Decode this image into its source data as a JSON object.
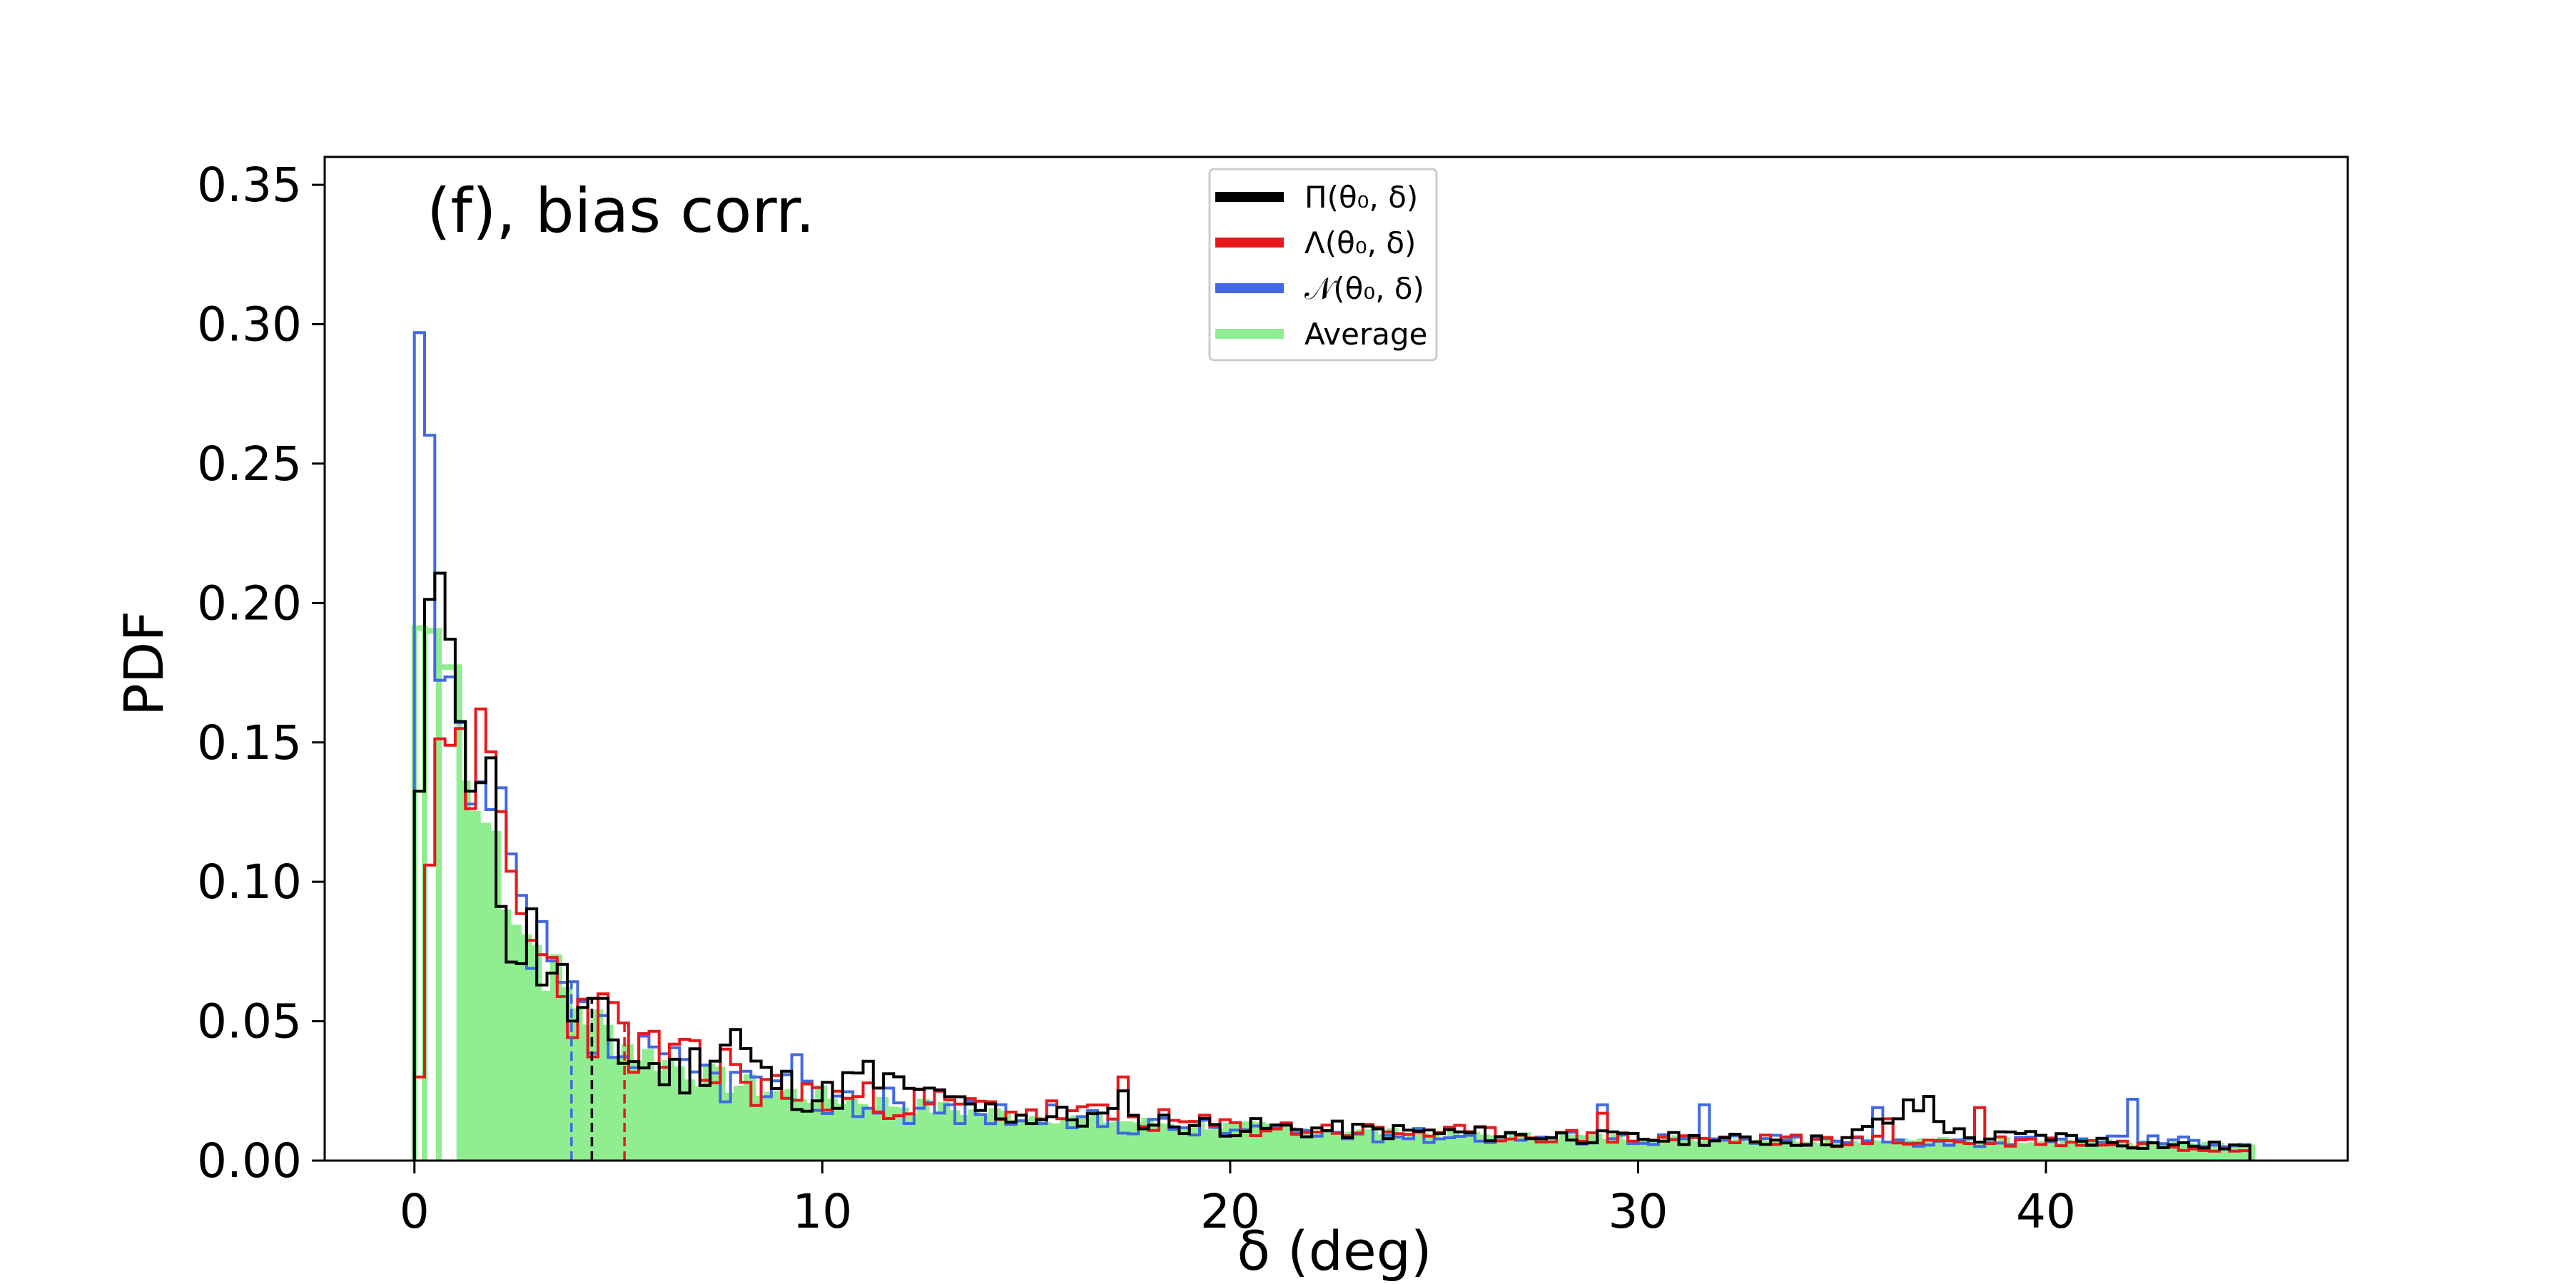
{
  "chart_data": {
    "type": "histogram",
    "annotation": "(f), bias corr.",
    "xlabel": "δ (deg)",
    "ylabel": "PDF",
    "xlim": [
      -2.2,
      47.4
    ],
    "ylim": [
      0.0,
      0.36
    ],
    "xticks": [
      0,
      10,
      20,
      30,
      40
    ],
    "yticks": [
      0.0,
      0.05,
      0.1,
      0.15,
      0.2,
      0.25,
      0.3,
      0.35
    ],
    "ytick_labels": [
      "0.00",
      "0.05",
      "0.10",
      "0.15",
      "0.20",
      "0.25",
      "0.30",
      "0.35"
    ],
    "grid": false,
    "legend_position": "top-center",
    "legend": [
      {
        "label": "Π(θ₀, δ)",
        "color": "#000000"
      },
      {
        "label": "Λ(θ₀, δ)",
        "color": "#e8191c"
      },
      {
        "label": "𝒩(θ₀, δ)",
        "color": "#4169e1"
      },
      {
        "label": "Average",
        "color": "#90ee90"
      }
    ],
    "x_range": [
      0,
      45
    ],
    "bin_width": 0.25,
    "series": [
      {
        "name": "Π(θ₀, δ)",
        "color": "#000000",
        "style": "step",
        "key_points": [
          [
            0,
            0.0
          ],
          [
            0.1,
            0.125
          ],
          [
            0.35,
            0.2
          ],
          [
            0.6,
            0.213
          ],
          [
            0.85,
            0.19
          ],
          [
            1.1,
            0.16
          ],
          [
            1.4,
            0.13
          ],
          [
            1.8,
            0.12
          ],
          [
            2.2,
            0.1
          ],
          [
            2.6,
            0.085
          ],
          [
            3.0,
            0.075
          ],
          [
            3.3,
            0.08
          ],
          [
            3.6,
            0.06
          ],
          [
            4.2,
            0.05
          ],
          [
            4.7,
            0.045
          ],
          [
            5.5,
            0.035
          ],
          [
            6.5,
            0.03
          ],
          [
            7.8,
            0.045
          ],
          [
            8.5,
            0.03
          ],
          [
            10,
            0.022
          ],
          [
            11,
            0.03
          ],
          [
            12,
            0.025
          ],
          [
            13,
            0.02
          ],
          [
            15,
            0.016
          ],
          [
            17,
            0.015
          ],
          [
            20,
            0.012
          ],
          [
            25,
            0.01
          ],
          [
            30,
            0.008
          ],
          [
            35,
            0.007
          ],
          [
            37,
            0.02
          ],
          [
            38,
            0.008
          ],
          [
            40,
            0.009
          ],
          [
            42,
            0.006
          ],
          [
            45,
            0.005
          ]
        ],
        "spikes": [
          [
            3.5,
            0.096
          ],
          [
            4.5,
            0.067
          ],
          [
            7.9,
            0.047
          ],
          [
            11.0,
            0.038
          ],
          [
            12.6,
            0.026
          ],
          [
            17.3,
            0.025
          ],
          [
            37.1,
            0.023
          ]
        ],
        "median_marker": 4.35
      },
      {
        "name": "Λ(θ₀, δ)",
        "color": "#e8191c",
        "style": "step",
        "key_points": [
          [
            0,
            0.0
          ],
          [
            0.25,
            0.06
          ],
          [
            0.5,
            0.152
          ],
          [
            0.85,
            0.15
          ],
          [
            1.1,
            0.14
          ],
          [
            1.4,
            0.125
          ],
          [
            1.8,
            0.12
          ],
          [
            2.2,
            0.1
          ],
          [
            2.6,
            0.085
          ],
          [
            3.0,
            0.075
          ],
          [
            3.5,
            0.063
          ],
          [
            4.0,
            0.055
          ],
          [
            4.6,
            0.05
          ],
          [
            5.5,
            0.04
          ],
          [
            6.5,
            0.035
          ],
          [
            7.5,
            0.03
          ],
          [
            9,
            0.025
          ],
          [
            11,
            0.022
          ],
          [
            13,
            0.02
          ],
          [
            15,
            0.018
          ],
          [
            17,
            0.016
          ],
          [
            20,
            0.012
          ],
          [
            25,
            0.01
          ],
          [
            30,
            0.008
          ],
          [
            35,
            0.007
          ],
          [
            40,
            0.007
          ],
          [
            42,
            0.006
          ],
          [
            45,
            0.004
          ]
        ],
        "spikes": [
          [
            1.6,
            0.162
          ],
          [
            1.05,
            0.155
          ],
          [
            6.8,
            0.043
          ],
          [
            7.6,
            0.04
          ],
          [
            17.3,
            0.03
          ],
          [
            24.0,
            0.019
          ],
          [
            29.2,
            0.017
          ],
          [
            36.2,
            0.015
          ],
          [
            38.3,
            0.019
          ]
        ],
        "median_marker": 5.15
      },
      {
        "name": "𝒩(θ₀, δ)",
        "color": "#4169e1",
        "style": "step",
        "key_points": [
          [
            0,
            0.0
          ],
          [
            0.1,
            0.3
          ],
          [
            0.35,
            0.27
          ],
          [
            0.6,
            0.172
          ],
          [
            0.85,
            0.175
          ],
          [
            1.1,
            0.16
          ],
          [
            1.4,
            0.125
          ],
          [
            1.8,
            0.12
          ],
          [
            2.2,
            0.1
          ],
          [
            2.6,
            0.08
          ],
          [
            3.0,
            0.07
          ],
          [
            3.5,
            0.06
          ],
          [
            4.0,
            0.05
          ],
          [
            5.0,
            0.038
          ],
          [
            6.0,
            0.033
          ],
          [
            7.5,
            0.03
          ],
          [
            9,
            0.025
          ],
          [
            11,
            0.02
          ],
          [
            13,
            0.018
          ],
          [
            15,
            0.016
          ],
          [
            17,
            0.014
          ],
          [
            20,
            0.011
          ],
          [
            25,
            0.009
          ],
          [
            30,
            0.008
          ],
          [
            35,
            0.007
          ],
          [
            40,
            0.007
          ],
          [
            42,
            0.008
          ],
          [
            45,
            0.006
          ]
        ],
        "spikes": [
          [
            2.3,
            0.11
          ],
          [
            9.4,
            0.038
          ],
          [
            11.7,
            0.026
          ],
          [
            29.1,
            0.02
          ],
          [
            31.7,
            0.02
          ],
          [
            35.8,
            0.019
          ],
          [
            42.1,
            0.022
          ]
        ],
        "median_marker": 3.85
      }
    ],
    "average": {
      "name": "Average",
      "color": "#90ee90",
      "style": "filled step",
      "outline_bins": [
        [
          0.0,
          0.25,
          0.191
        ],
        [
          0.25,
          0.6,
          0.19
        ],
        [
          0.6,
          1.1,
          0.177
        ]
      ],
      "filled_from": 1.1,
      "key_points": [
        [
          1.1,
          0.137
        ],
        [
          1.4,
          0.124
        ],
        [
          1.8,
          0.119
        ],
        [
          2.2,
          0.1
        ],
        [
          2.6,
          0.083
        ],
        [
          3.0,
          0.074
        ],
        [
          3.5,
          0.062
        ],
        [
          4.0,
          0.054
        ],
        [
          4.6,
          0.046
        ],
        [
          5.5,
          0.038
        ],
        [
          6.5,
          0.033
        ],
        [
          7.5,
          0.028
        ],
        [
          9,
          0.024
        ],
        [
          11,
          0.021
        ],
        [
          13,
          0.018
        ],
        [
          15,
          0.016
        ],
        [
          17,
          0.014
        ],
        [
          20,
          0.012
        ],
        [
          25,
          0.009
        ],
        [
          30,
          0.008
        ],
        [
          35,
          0.007
        ],
        [
          40,
          0.007
        ],
        [
          45,
          0.005
        ]
      ]
    }
  }
}
